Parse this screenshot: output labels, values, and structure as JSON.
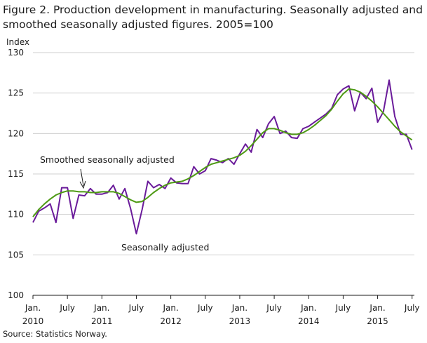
{
  "chart_data": {
    "type": "line",
    "title": "Figure 2. Production development in manufacturing. Seasonally adjusted and smoothed seasonally adjusted figures. 2005=100",
    "ylabel": "Index",
    "xlabel": "",
    "ylim": [
      100,
      130
    ],
    "yticks": [
      100,
      105,
      110,
      115,
      120,
      125,
      130
    ],
    "xticks": [
      {
        "month": "2010-01",
        "label1": "Jan.",
        "label2": "2010"
      },
      {
        "month": "2010-07",
        "label1": "July",
        "label2": ""
      },
      {
        "month": "2011-01",
        "label1": "Jan.",
        "label2": "2011"
      },
      {
        "month": "2011-07",
        "label1": "July",
        "label2": ""
      },
      {
        "month": "2012-01",
        "label1": "Jan.",
        "label2": "2012"
      },
      {
        "month": "2012-07",
        "label1": "July",
        "label2": ""
      },
      {
        "month": "2013-01",
        "label1": "Jan.",
        "label2": "2013"
      },
      {
        "month": "2013-07",
        "label1": "July",
        "label2": ""
      },
      {
        "month": "2014-01",
        "label1": "Jan.",
        "label2": "2014"
      },
      {
        "month": "2014-07",
        "label1": "July",
        "label2": ""
      },
      {
        "month": "2015-01",
        "label1": "Jan.",
        "label2": "2015"
      },
      {
        "month": "2015-07",
        "label1": "July",
        "label2": ""
      }
    ],
    "grid": "horizontal",
    "x": [
      "2010-01",
      "2010-02",
      "2010-03",
      "2010-04",
      "2010-05",
      "2010-06",
      "2010-07",
      "2010-08",
      "2010-09",
      "2010-10",
      "2010-11",
      "2010-12",
      "2011-01",
      "2011-02",
      "2011-03",
      "2011-04",
      "2011-05",
      "2011-06",
      "2011-07",
      "2011-08",
      "2011-09",
      "2011-10",
      "2011-11",
      "2011-12",
      "2012-01",
      "2012-02",
      "2012-03",
      "2012-04",
      "2012-05",
      "2012-06",
      "2012-07",
      "2012-08",
      "2012-09",
      "2012-10",
      "2012-11",
      "2012-12",
      "2013-01",
      "2013-02",
      "2013-03",
      "2013-04",
      "2013-05",
      "2013-06",
      "2013-07",
      "2013-08",
      "2013-09",
      "2013-10",
      "2013-11",
      "2013-12",
      "2014-01",
      "2014-02",
      "2014-03",
      "2014-04",
      "2014-05",
      "2014-06",
      "2014-07",
      "2014-08",
      "2014-09",
      "2014-10",
      "2014-11",
      "2014-12",
      "2015-01",
      "2015-02",
      "2015-03",
      "2015-04",
      "2015-05",
      "2015-06",
      "2015-07"
    ],
    "series": [
      {
        "name": "Seasonally adjusted",
        "color": "#6a1b9a",
        "values": [
          109.0,
          110.4,
          110.8,
          111.3,
          109.0,
          113.3,
          113.3,
          109.5,
          112.4,
          112.3,
          113.2,
          112.5,
          112.5,
          112.7,
          113.6,
          111.9,
          113.2,
          110.7,
          107.6,
          110.6,
          114.1,
          113.3,
          113.7,
          113.2,
          114.5,
          113.9,
          113.8,
          113.8,
          115.9,
          115.0,
          115.4,
          116.9,
          116.7,
          116.4,
          116.9,
          116.2,
          117.5,
          118.7,
          117.7,
          120.5,
          119.5,
          121.2,
          122.1,
          120.0,
          120.3,
          119.5,
          119.4,
          120.6,
          120.9,
          121.4,
          121.9,
          122.4,
          123.1,
          124.8,
          125.5,
          125.9,
          122.8,
          125.1,
          124.3,
          125.6,
          121.4,
          122.7,
          126.6,
          122.1,
          119.9,
          119.9,
          118.0
        ]
      },
      {
        "name": "Smoothed seasonally adjusted",
        "color": "#4e9a14",
        "values": [
          109.7,
          110.6,
          111.3,
          111.9,
          112.4,
          112.7,
          112.9,
          112.9,
          112.8,
          112.8,
          112.7,
          112.7,
          112.8,
          112.8,
          112.8,
          112.6,
          112.2,
          111.8,
          111.5,
          111.6,
          112.1,
          112.7,
          113.2,
          113.6,
          113.9,
          114.0,
          114.1,
          114.4,
          114.8,
          115.3,
          115.8,
          116.2,
          116.4,
          116.6,
          116.8,
          117.0,
          117.3,
          117.8,
          118.5,
          119.3,
          120.1,
          120.6,
          120.6,
          120.4,
          120.1,
          119.9,
          119.9,
          120.1,
          120.5,
          121.0,
          121.6,
          122.2,
          123.0,
          124.0,
          124.9,
          125.5,
          125.4,
          125.1,
          124.6,
          124.0,
          123.3,
          122.5,
          121.7,
          120.9,
          120.2,
          119.7,
          119.2
        ]
      }
    ],
    "annotations": [
      {
        "text": "Smoothed seasonally adjusted",
        "series": 1
      },
      {
        "text": "Seasonally adjusted",
        "series": 0
      }
    ]
  },
  "source": "Source: Statistics Norway."
}
